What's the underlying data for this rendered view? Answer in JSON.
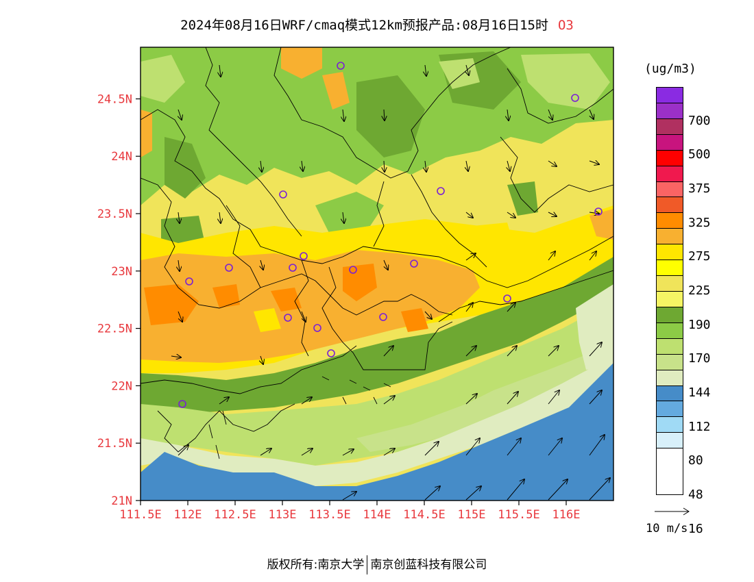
{
  "title": {
    "main": "2024年08月16日WRF/cmaq模式12km预报产品:08月16日15时",
    "variable": "O3"
  },
  "axes": {
    "x_ticks": [
      "111.5E",
      "112E",
      "112.5E",
      "113E",
      "113.5E",
      "114E",
      "114.5E",
      "115E",
      "115.5E",
      "116E"
    ],
    "x_values": [
      111.5,
      112.0,
      112.5,
      113.0,
      113.5,
      114.0,
      114.5,
      115.0,
      115.5,
      116.0
    ],
    "y_ticks": [
      "21N",
      "21.5N",
      "22N",
      "22.5N",
      "23N",
      "23.5N",
      "24N",
      "24.5N"
    ],
    "y_values": [
      21.0,
      21.5,
      22.0,
      22.5,
      23.0,
      23.5,
      24.0,
      24.5
    ],
    "lon_range": [
      111.5,
      116.5
    ],
    "lat_range": [
      21.0,
      24.95
    ]
  },
  "legend": {
    "units": "(ug/m3)",
    "labels": [
      "700",
      "500",
      "375",
      "325",
      "275",
      "225",
      "190",
      "170",
      "144",
      "112",
      "80",
      "48",
      "16"
    ],
    "colors": [
      "#8a2be2",
      "#9b30c8",
      "#b03060",
      "#c8147e",
      "#ff0000",
      "#f0194e",
      "#fa6464",
      "#f05a28",
      "#ff8c00",
      "#f8b030",
      "#ffe600",
      "#ffff00",
      "#f0e45a",
      "#f5f564",
      "#6ea832",
      "#8ccb46",
      "#bee070",
      "#c8e28a",
      "#e0ecc0",
      "#468cc8",
      "#64aadf",
      "#a0daf5",
      "#d8f0fa",
      "#ffffff"
    ]
  },
  "reference_vector": {
    "label": "10 m/s"
  },
  "copyright": {
    "left": "版权所有:南京大学",
    "right": "南京创蓝科技有限公司"
  }
}
